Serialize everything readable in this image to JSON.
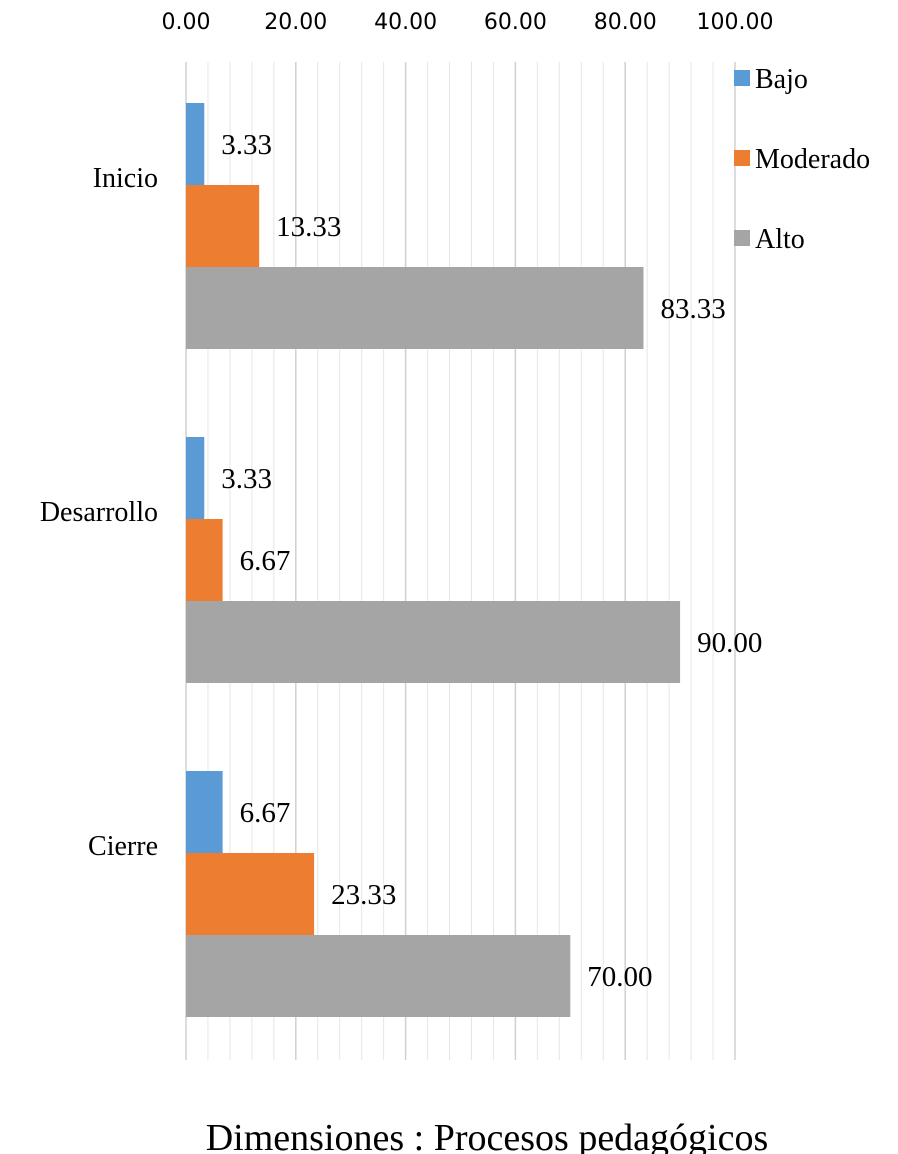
{
  "chart_data": {
    "type": "bar",
    "orientation": "horizontal",
    "categories": [
      "Inicio",
      "Desarrollo",
      "Cierre"
    ],
    "series": [
      {
        "name": "Bajo",
        "values": [
          3.33,
          3.33,
          6.67
        ],
        "color": "#5B9BD5"
      },
      {
        "name": "Moderado",
        "values": [
          13.33,
          6.67,
          23.33
        ],
        "color": "#ED7D31"
      },
      {
        "name": "Alto",
        "values": [
          83.33,
          90.0,
          70.0
        ],
        "color": "#A5A5A5"
      }
    ],
    "data_labels": [
      [
        "3.33",
        "3.33",
        "6.67"
      ],
      [
        "13.33",
        "6.67",
        "23.33"
      ],
      [
        "83.33",
        "90.00",
        "70.00"
      ]
    ],
    "x_ticks": [
      "0.00",
      "20.00",
      "40.00",
      "60.00",
      "80.00",
      "100.00"
    ],
    "xlim": [
      0,
      100
    ],
    "major_step": 20,
    "minor_step": 4,
    "xaxis_position": "top",
    "xlabel": "Dimensiones : Procesos pedagógicos",
    "legend_position": "top-right",
    "grid": true,
    "gridline_color": "#D9D9D9"
  }
}
